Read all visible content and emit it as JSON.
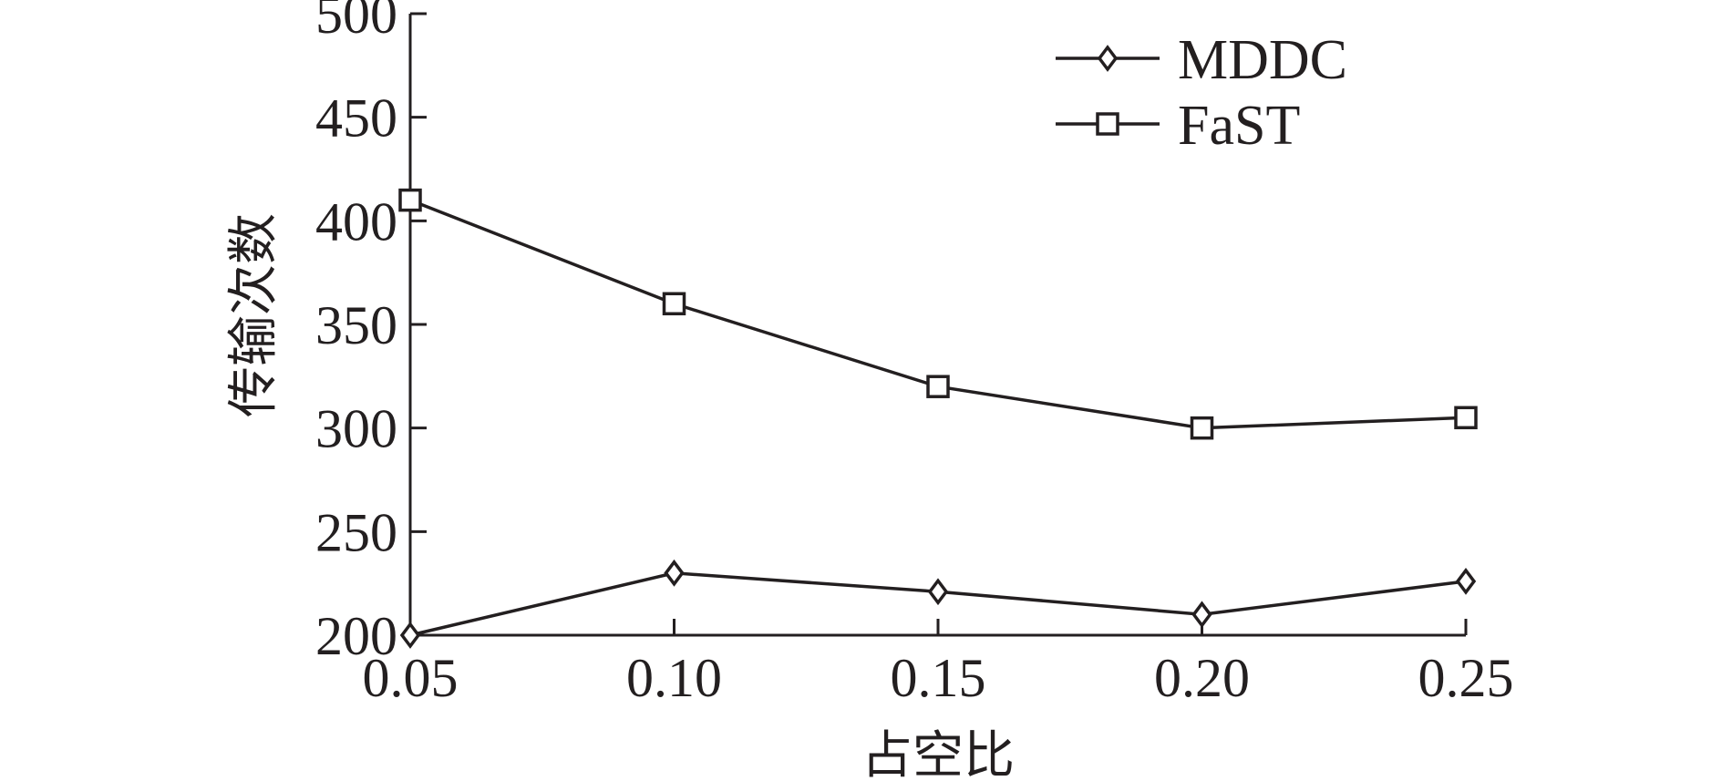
{
  "chart_data": {
    "type": "line",
    "title": "",
    "xlabel": "占空比",
    "ylabel": "传输次数",
    "x": [
      0.05,
      0.1,
      0.15,
      0.2,
      0.25
    ],
    "xtick_labels": [
      "0.05",
      "0.10",
      "0.15",
      "0.20",
      "0.25"
    ],
    "ytick_labels": [
      "200",
      "250",
      "300",
      "350",
      "400",
      "450",
      "500"
    ],
    "yticks": [
      200,
      250,
      300,
      350,
      400,
      450,
      500
    ],
    "xlim": [
      0.05,
      0.25
    ],
    "ylim": [
      200,
      500
    ],
    "grid": false,
    "legend_position": "top-right",
    "series": [
      {
        "name": "MDDC",
        "marker": "diamond",
        "values": [
          200,
          230,
          221,
          210,
          226
        ]
      },
      {
        "name": "FaST",
        "marker": "square",
        "values": [
          410,
          360,
          320,
          300,
          305
        ]
      }
    ],
    "colors": {
      "ink": "#231f20"
    }
  }
}
